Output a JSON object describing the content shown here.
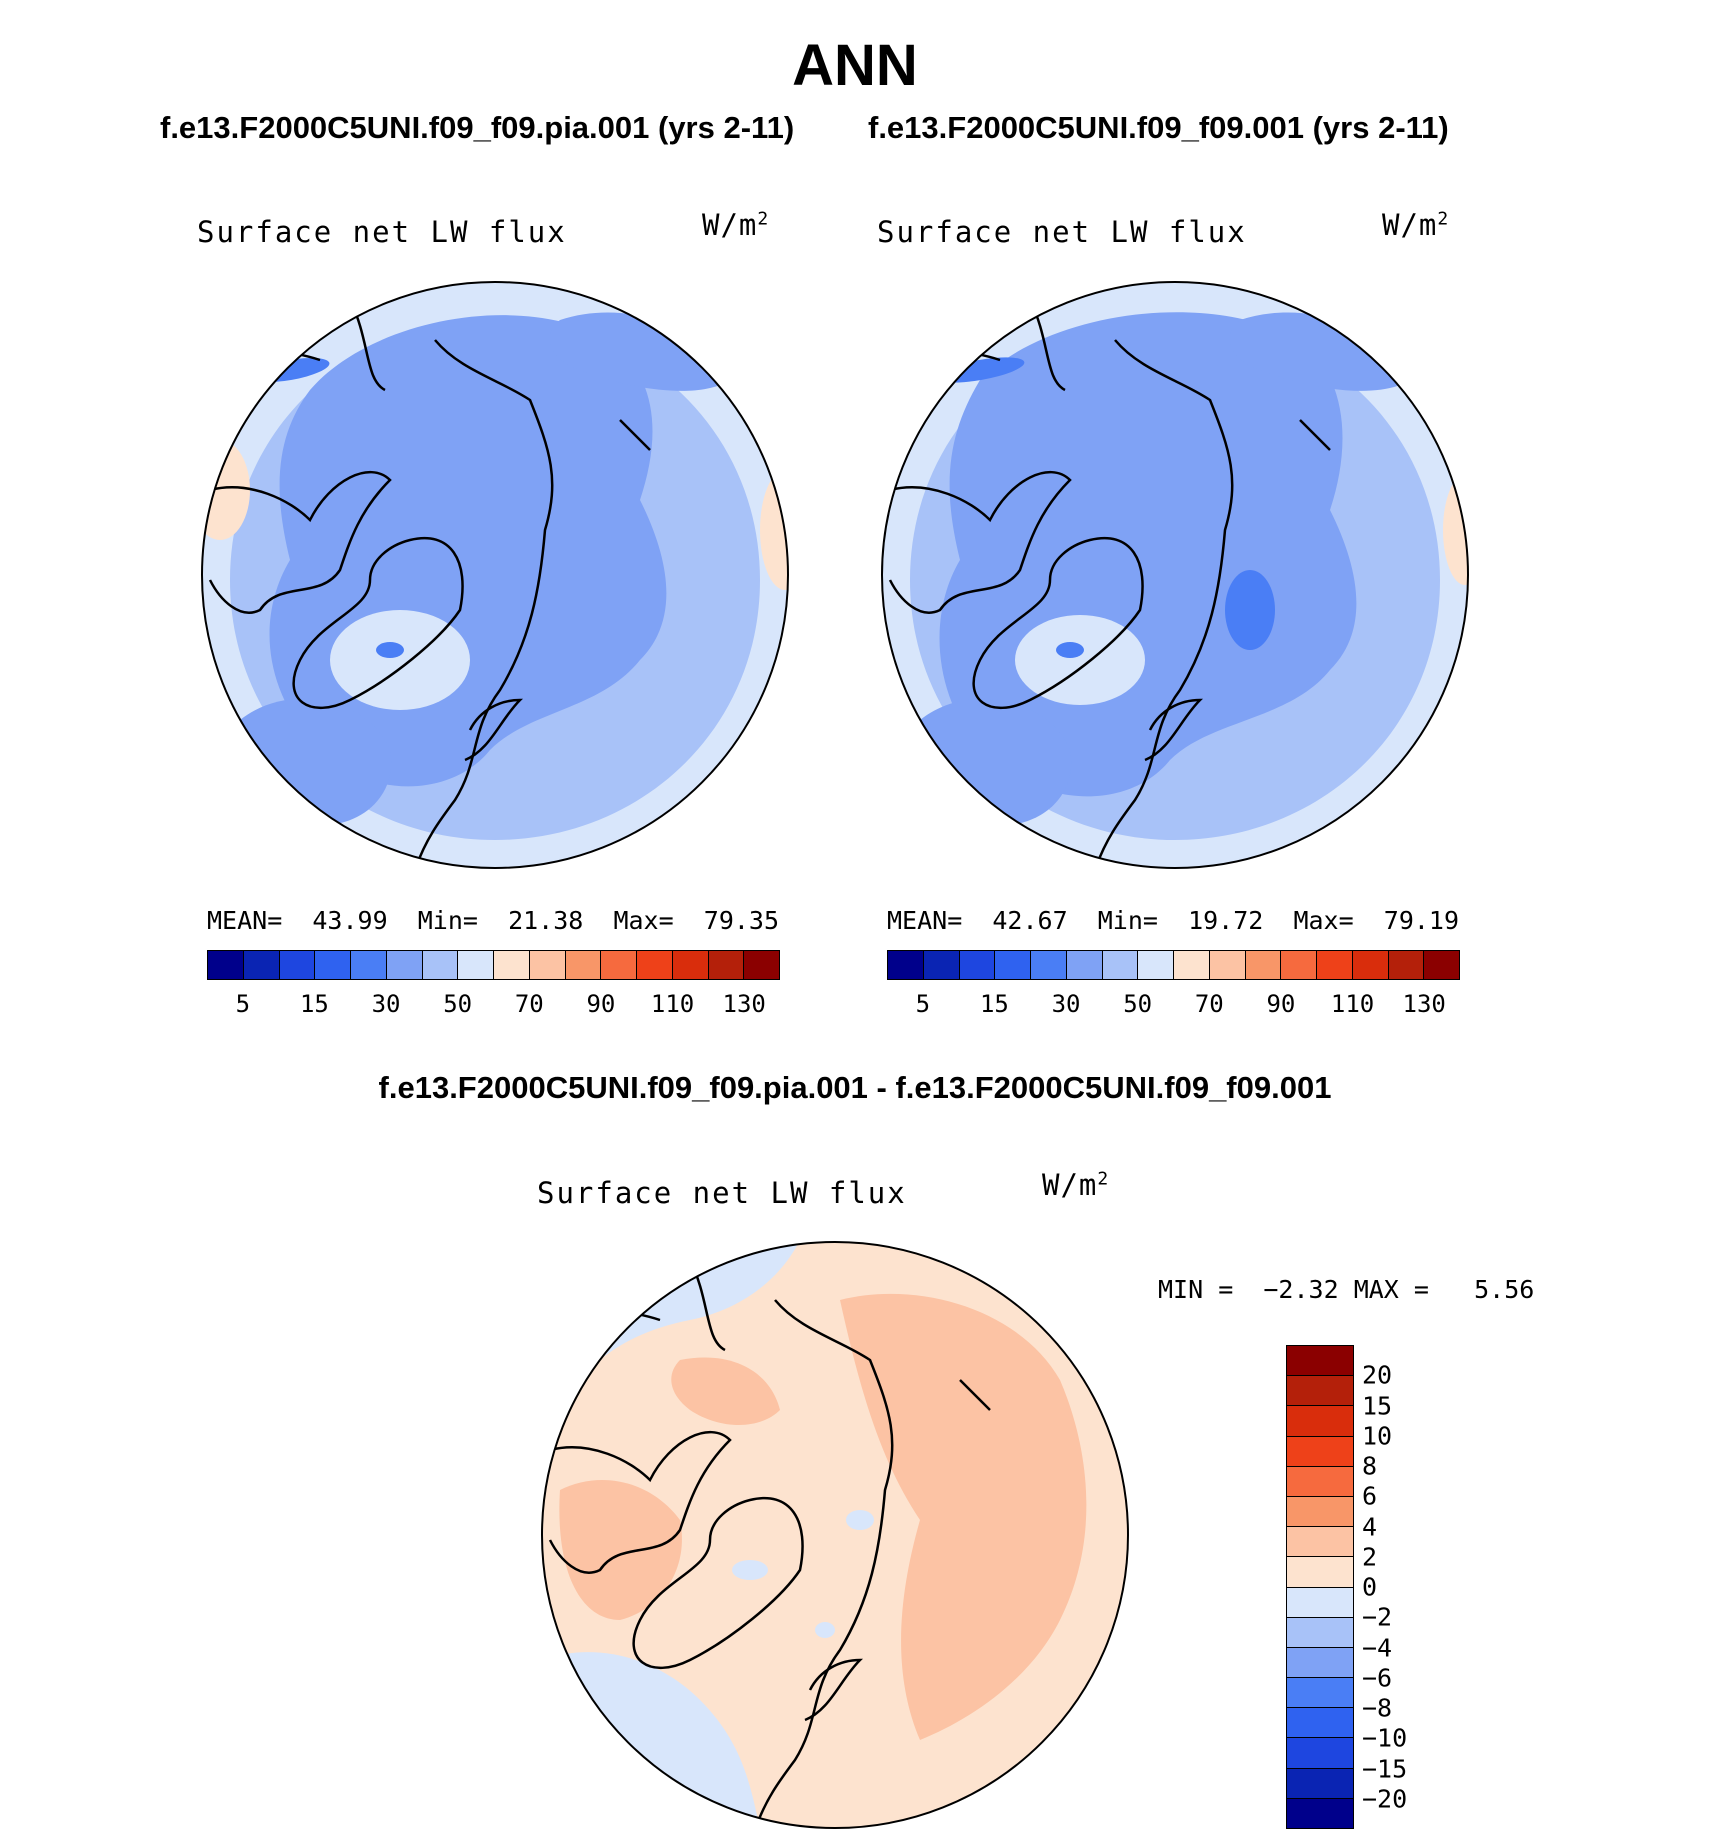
{
  "figure": {
    "title": "ANN",
    "left_case_title": "f.e13.F2000C5UNI.f09_f09.pia.001 (yrs 2-11)",
    "right_case_title": "f.e13.F2000C5UNI.f09_f09.001 (yrs 2-11)",
    "diff_title": "f.e13.F2000C5UNI.f09_f09.pia.001 - f.e13.F2000C5UNI.f09_f09.001"
  },
  "chart_data": [
    {
      "type": "heatmap",
      "projection": "north-polar-stereographic",
      "title": "Surface net LW flux",
      "units": "W/m",
      "units_exp": "2",
      "mean_label": "MEAN=",
      "mean": "43.99",
      "min_label": "Min=",
      "min": "21.38",
      "max_label": "Max=",
      "max": "79.35",
      "levels": [
        5,
        10,
        15,
        20,
        30,
        40,
        50,
        60,
        70,
        80,
        90,
        100,
        110,
        120,
        130
      ],
      "level_labels": [
        "5",
        "15",
        "30",
        "50",
        "70",
        "90",
        "110",
        "130"
      ],
      "colors": [
        "#00008b",
        "#0a24b3",
        "#1e46e0",
        "#2f62f0",
        "#4a7ef5",
        "#7fa2f5",
        "#a8c2f8",
        "#d8e6fb",
        "#fde3cf",
        "#fcc3a4",
        "#f89668",
        "#f66a3e",
        "#ee4119",
        "#d92d0c",
        "#b4200a",
        "#8b0000"
      ],
      "dominant_range": "30-50"
    },
    {
      "type": "heatmap",
      "projection": "north-polar-stereographic",
      "title": "Surface net LW flux",
      "units": "W/m",
      "units_exp": "2",
      "mean_label": "MEAN=",
      "mean": "42.67",
      "min_label": "Min=",
      "min": "19.72",
      "max_label": "Max=",
      "max": "79.19",
      "levels": [
        5,
        10,
        15,
        20,
        30,
        40,
        50,
        60,
        70,
        80,
        90,
        100,
        110,
        120,
        130
      ],
      "level_labels": [
        "5",
        "15",
        "30",
        "50",
        "70",
        "90",
        "110",
        "130"
      ],
      "colors": [
        "#00008b",
        "#0a24b3",
        "#1e46e0",
        "#2f62f0",
        "#4a7ef5",
        "#7fa2f5",
        "#a8c2f8",
        "#d8e6fb",
        "#fde3cf",
        "#fcc3a4",
        "#f89668",
        "#f66a3e",
        "#ee4119",
        "#d92d0c",
        "#b4200a",
        "#8b0000"
      ],
      "dominant_range": "30-50"
    },
    {
      "type": "heatmap",
      "projection": "north-polar-stereographic",
      "title": "Surface net LW flux",
      "units": "W/m",
      "units_exp": "2",
      "min_label": "MIN =",
      "min": "−2.32",
      "max_label": "MAX =",
      "max": "5.56",
      "levels": [
        "20",
        "15",
        "10",
        "8",
        "6",
        "4",
        "2",
        "0",
        "−2",
        "−4",
        "−6",
        "−8",
        "−10",
        "−15",
        "−20"
      ],
      "colors": [
        "#8b0000",
        "#b4200a",
        "#d92d0c",
        "#ee4119",
        "#f66a3e",
        "#f89668",
        "#fcc3a4",
        "#fde3cf",
        "#d8e6fb",
        "#a8c2f8",
        "#7fa2f5",
        "#4a7ef5",
        "#2f62f0",
        "#1e46e0",
        "#0a24b3",
        "#00008b"
      ],
      "dominant_range": "0-2"
    }
  ]
}
